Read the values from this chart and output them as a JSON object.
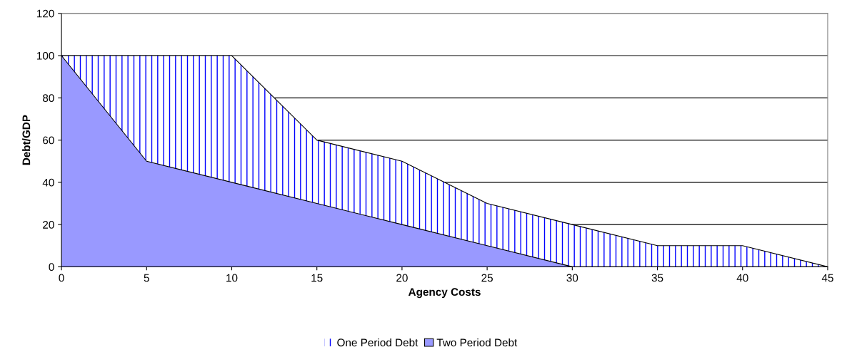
{
  "chart_data": {
    "type": "area",
    "xlabel": "Agency Costs",
    "ylabel": "Debt/GDP",
    "x": [
      0,
      5,
      10,
      15,
      20,
      25,
      30,
      35,
      40,
      45
    ],
    "series": [
      {
        "name": "One Period Debt",
        "color": "#0000ff",
        "values": [
          100,
          100,
          100,
          60,
          50,
          30,
          20,
          10,
          10,
          0
        ]
      },
      {
        "name": "Two Period Debt",
        "color": "#9999ff",
        "x": [
          0,
          5,
          10,
          15,
          20,
          25,
          30
        ],
        "values": [
          100,
          50,
          40,
          30,
          20,
          10,
          0
        ]
      }
    ],
    "xlim": [
      0,
      45
    ],
    "xticks": [
      0,
      5,
      10,
      15,
      20,
      25,
      30,
      35,
      40,
      45
    ],
    "ylim": [
      0,
      120
    ],
    "yticks": [
      0,
      20,
      40,
      60,
      80,
      100,
      120
    ],
    "grid": "y",
    "legend": "bottom"
  }
}
